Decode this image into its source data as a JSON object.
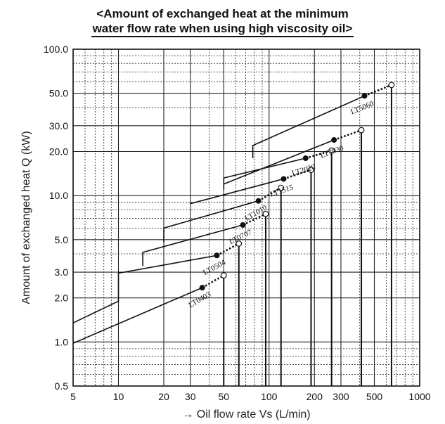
{
  "chart_data": {
    "type": "line",
    "title": "<Amount of exchanged heat at the minimum",
    "subtitle": "water flow rate when using high viscosity oil>",
    "xlabel": "→  Oil flow rate Vs (L/min)",
    "ylabel": "Amount of exchanged heat Q (kW)",
    "xscale": "log",
    "yscale": "log",
    "xlim": [
      5,
      1000
    ],
    "ylim": [
      0.5,
      100
    ],
    "grid": true,
    "xticks": [
      5,
      10,
      20,
      30,
      50,
      100,
      200,
      300,
      500,
      1000
    ],
    "xtick_labels": [
      "5",
      "10",
      "20",
      "30",
      "50",
      "100",
      "200",
      "300",
      "500",
      "1000"
    ],
    "yticks": [
      0.5,
      1,
      2,
      3,
      5,
      10,
      20,
      30,
      50,
      100
    ],
    "ytick_labels": [
      "0.5",
      "1.0",
      "2.0",
      "3.0",
      "5.0",
      "10.0",
      "20.0",
      "30.0",
      "50.0",
      "100.0"
    ],
    "series": [
      {
        "name": "LT0403",
        "x": [
          5,
          36
        ],
        "y": [
          0.98,
          2.35
        ],
        "filled_end": [
          36,
          2.35
        ],
        "open_end": [
          50,
          2.85
        ],
        "start_step": null
      },
      {
        "name": "LT0504",
        "x": [
          5,
          10,
          10,
          45
        ],
        "y": [
          1.35,
          1.9,
          2.95,
          3.9
        ],
        "filled_end": [
          45,
          3.9
        ],
        "open_end": [
          63,
          4.7
        ],
        "start_step": null
      },
      {
        "name": "LT0707",
        "x": [
          14.5,
          14.5,
          67
        ],
        "y": [
          3.3,
          4.1,
          6.3
        ],
        "filled_end": [
          67,
          6.3
        ],
        "open_end": [
          95,
          7.5
        ],
        "start_step": null
      },
      {
        "name": "LT1010",
        "x": [
          20,
          20,
          85
        ],
        "y": [
          4.8,
          6.0,
          9.2
        ],
        "filled_end": [
          85,
          9.2
        ],
        "open_end": [
          120,
          11.3
        ],
        "start_step": null
      },
      {
        "name": "LT1515",
        "x": [
          30,
          125
        ],
        "y": [
          8.8,
          13.0
        ],
        "filled_end": [
          125,
          13.0
        ],
        "open_end": [
          190,
          15.0
        ],
        "start_step": null
      },
      {
        "name": "LT2020",
        "x": [
          50,
          50,
          175
        ],
        "y": [
          11.0,
          13.2,
          18.0
        ],
        "filled_end": [
          175,
          18.0
        ],
        "open_end": [
          260,
          20.3
        ],
        "start_step": null
      },
      {
        "name": "LT3030",
        "x": [
          50,
          270
        ],
        "y": [
          12.0,
          24.0
        ],
        "filled_end": [
          270,
          24.0
        ],
        "open_end": [
          410,
          28.0
        ],
        "start_step": null
      },
      {
        "name": "LT5060",
        "x": [
          78,
          78,
          430
        ],
        "y": [
          18.0,
          22.0,
          48.0
        ],
        "filled_end": [
          430,
          48.0
        ],
        "open_end": [
          650,
          57.0
        ],
        "start_step": null
      }
    ],
    "vertical_drops_x": [
      50,
      63,
      95,
      120,
      190,
      260,
      410,
      650
    ]
  }
}
